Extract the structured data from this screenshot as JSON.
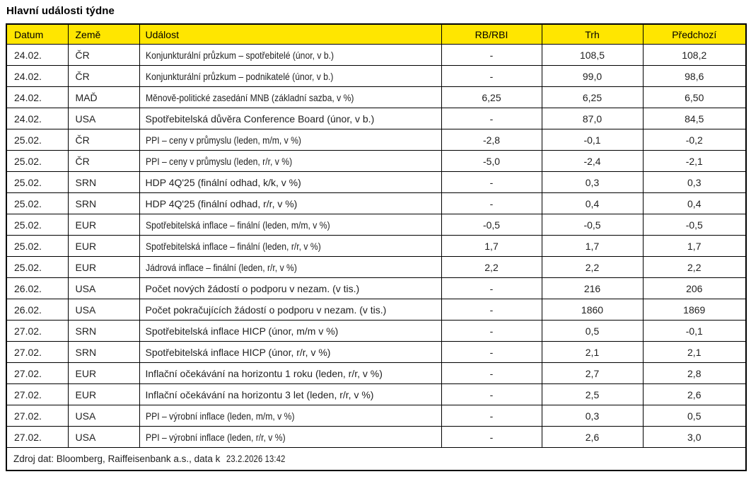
{
  "title": "Hlavní události týdne",
  "colors": {
    "header_bg": "#FFE600",
    "border": "#000000",
    "text": "#1F1F1F"
  },
  "table": {
    "columns": [
      {
        "key": "datum",
        "label": "Datum"
      },
      {
        "key": "zeme",
        "label": "Země"
      },
      {
        "key": "udalost",
        "label": "Událost"
      },
      {
        "key": "rb_rbi",
        "label": "RB/RBI"
      },
      {
        "key": "trh",
        "label": "Trh"
      },
      {
        "key": "predchozi",
        "label": "Předchozí"
      }
    ],
    "rows": [
      {
        "datum": "24.02.",
        "zeme": "ČR",
        "udalost": "Konjunkturální průzkum – spotřebitelé (únor, v b.)",
        "rb_rbi": "-",
        "trh": "108,5",
        "predchozi": "108,2",
        "condensed": true
      },
      {
        "datum": "24.02.",
        "zeme": "ČR",
        "udalost": "Konjunkturální průzkum – podnikatelé (únor, v b.)",
        "rb_rbi": "-",
        "trh": "99,0",
        "predchozi": "98,6",
        "condensed": true
      },
      {
        "datum": "24.02.",
        "zeme": "MAĎ",
        "udalost": "Měnově-politické zasedání MNB (základní sazba, v %)",
        "rb_rbi": "6,25",
        "trh": "6,25",
        "predchozi": "6,50",
        "condensed": true
      },
      {
        "datum": "24.02.",
        "zeme": "USA",
        "udalost": "Spotřebitelská důvěra Conference Board (únor, v b.)",
        "rb_rbi": "-",
        "trh": "87,0",
        "predchozi": "84,5",
        "condensed": false
      },
      {
        "datum": "25.02.",
        "zeme": "ČR",
        "udalost": "PPI – ceny v průmyslu (leden, m/m, v %)",
        "rb_rbi": "-2,8",
        "trh": "-0,1",
        "predchozi": "-0,2",
        "condensed": true
      },
      {
        "datum": "25.02.",
        "zeme": "ČR",
        "udalost": "PPI – ceny v průmyslu (leden, r/r, v %)",
        "rb_rbi": "-5,0",
        "trh": "-2,4",
        "predchozi": "-2,1",
        "condensed": true
      },
      {
        "datum": "25.02.",
        "zeme": "SRN",
        "udalost": "HDP 4Q'25 (finální odhad, k/k, v %)",
        "rb_rbi": "-",
        "trh": "0,3",
        "predchozi": "0,3",
        "condensed": false
      },
      {
        "datum": "25.02.",
        "zeme": "SRN",
        "udalost": "HDP 4Q'25 (finální odhad, r/r, v %)",
        "rb_rbi": "-",
        "trh": "0,4",
        "predchozi": "0,4",
        "condensed": false
      },
      {
        "datum": "25.02.",
        "zeme": "EUR",
        "udalost": "Spotřebitelská inflace – finální (leden, m/m, v %)",
        "rb_rbi": "-0,5",
        "trh": "-0,5",
        "predchozi": "-0,5",
        "condensed": true
      },
      {
        "datum": "25.02.",
        "zeme": "EUR",
        "udalost": "Spotřebitelská inflace – finální (leden, r/r, v %)",
        "rb_rbi": "1,7",
        "trh": "1,7",
        "predchozi": "1,7",
        "condensed": true
      },
      {
        "datum": "25.02.",
        "zeme": "EUR",
        "udalost": "Jádrová inflace – finální (leden, r/r, v %)",
        "rb_rbi": "2,2",
        "trh": "2,2",
        "predchozi": "2,2",
        "condensed": true
      },
      {
        "datum": "26.02.",
        "zeme": "USA",
        "udalost": "Počet nových žádostí o podporu v nezam. (v tis.)",
        "rb_rbi": "-",
        "trh": "216",
        "predchozi": "206",
        "condensed": false
      },
      {
        "datum": "26.02.",
        "zeme": "USA",
        "udalost": "Počet pokračujících žádostí o podporu v nezam. (v tis.)",
        "rb_rbi": "-",
        "trh": "1860",
        "predchozi": "1869",
        "condensed": false
      },
      {
        "datum": "27.02.",
        "zeme": "SRN",
        "udalost": "Spotřebitelská inflace HICP (únor, m/m v %)",
        "rb_rbi": "-",
        "trh": "0,5",
        "predchozi": "-0,1",
        "condensed": false
      },
      {
        "datum": "27.02.",
        "zeme": "SRN",
        "udalost": "Spotřebitelská inflace HICP (únor, r/r, v %)",
        "rb_rbi": "-",
        "trh": "2,1",
        "predchozi": "2,1",
        "condensed": false
      },
      {
        "datum": "27.02.",
        "zeme": "EUR",
        "udalost": "Inflační očekávání na horizontu 1 roku (leden, r/r, v %)",
        "rb_rbi": "-",
        "trh": "2,7",
        "predchozi": "2,8",
        "condensed": false
      },
      {
        "datum": "27.02.",
        "zeme": "EUR",
        "udalost": "Inflační očekávání na horizontu 3 let (leden, r/r, v %)",
        "rb_rbi": "-",
        "trh": "2,5",
        "predchozi": "2,6",
        "condensed": false
      },
      {
        "datum": "27.02.",
        "zeme": "USA",
        "udalost": "PPI – výrobní inflace (leden, m/m, v %)",
        "rb_rbi": "-",
        "trh": "0,3",
        "predchozi": "0,5",
        "condensed": true
      },
      {
        "datum": "27.02.",
        "zeme": "USA",
        "udalost": "PPI – výrobní inflace (leden, r/r, v %)",
        "rb_rbi": "-",
        "trh": "2,6",
        "predchozi": "3,0",
        "condensed": true
      }
    ]
  },
  "footer": {
    "source": "Zdroj dat: Bloomberg, Raiffeisenbank a.s., data k",
    "timestamp": "23.2.2026 13:42"
  }
}
